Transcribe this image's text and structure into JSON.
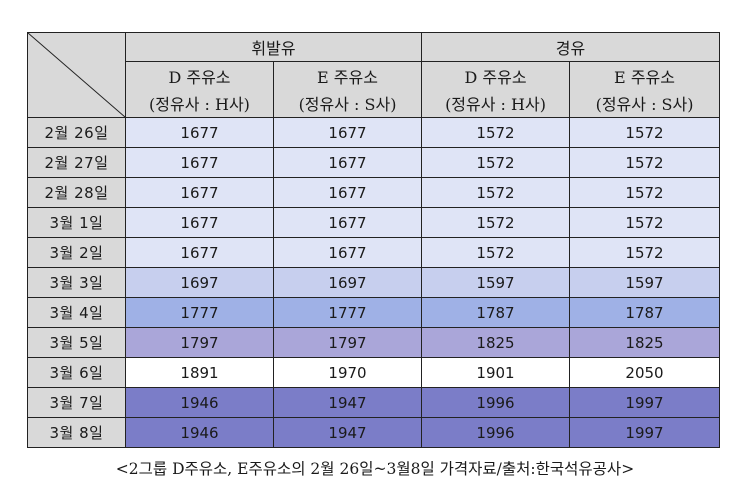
{
  "table": {
    "groups": [
      {
        "label": "휘발유",
        "stations": [
          {
            "name": "D 주유소",
            "company": "(정유사 : H사)"
          },
          {
            "name": "E 주유소",
            "company": "(정유사 : S사)"
          }
        ]
      },
      {
        "label": "경유",
        "stations": [
          {
            "name": "D 주유소",
            "company": "(정유사 : H사)"
          },
          {
            "name": "E 주유소",
            "company": "(정유사 : S사)"
          }
        ]
      }
    ],
    "rows": [
      {
        "date": "2월 26일",
        "values": [
          "1677",
          "1677",
          "1572",
          "1572"
        ],
        "color": "#dfe4f6"
      },
      {
        "date": "2월 27일",
        "values": [
          "1677",
          "1677",
          "1572",
          "1572"
        ],
        "color": "#dfe4f6"
      },
      {
        "date": "2월 28일",
        "values": [
          "1677",
          "1677",
          "1572",
          "1572"
        ],
        "color": "#dfe4f6"
      },
      {
        "date": "3월 1일",
        "values": [
          "1677",
          "1677",
          "1572",
          "1572"
        ],
        "color": "#dfe4f6"
      },
      {
        "date": "3월 2일",
        "values": [
          "1677",
          "1677",
          "1572",
          "1572"
        ],
        "color": "#dfe4f6"
      },
      {
        "date": "3월 3일",
        "values": [
          "1697",
          "1697",
          "1597",
          "1597"
        ],
        "color": "#c7cfee"
      },
      {
        "date": "3월 4일",
        "values": [
          "1777",
          "1777",
          "1787",
          "1787"
        ],
        "color": "#9fb1e6"
      },
      {
        "date": "3월 5일",
        "values": [
          "1797",
          "1797",
          "1825",
          "1825"
        ],
        "color": "#aaa6d9"
      },
      {
        "date": "3월 6일",
        "values": [
          "1891",
          "1970",
          "1901",
          "2050"
        ],
        "color": "#ffffff"
      },
      {
        "date": "3월 7일",
        "values": [
          "1946",
          "1947",
          "1996",
          "1997"
        ],
        "color": "#7b7dc8"
      },
      {
        "date": "3월 8일",
        "values": [
          "1946",
          "1947",
          "1996",
          "1997"
        ],
        "color": "#7b7dc8"
      }
    ]
  },
  "caption": "<2그룹 D주유소, E주유소의 2월 26일~3월8일 가격자료/출처:한국석유공사>"
}
